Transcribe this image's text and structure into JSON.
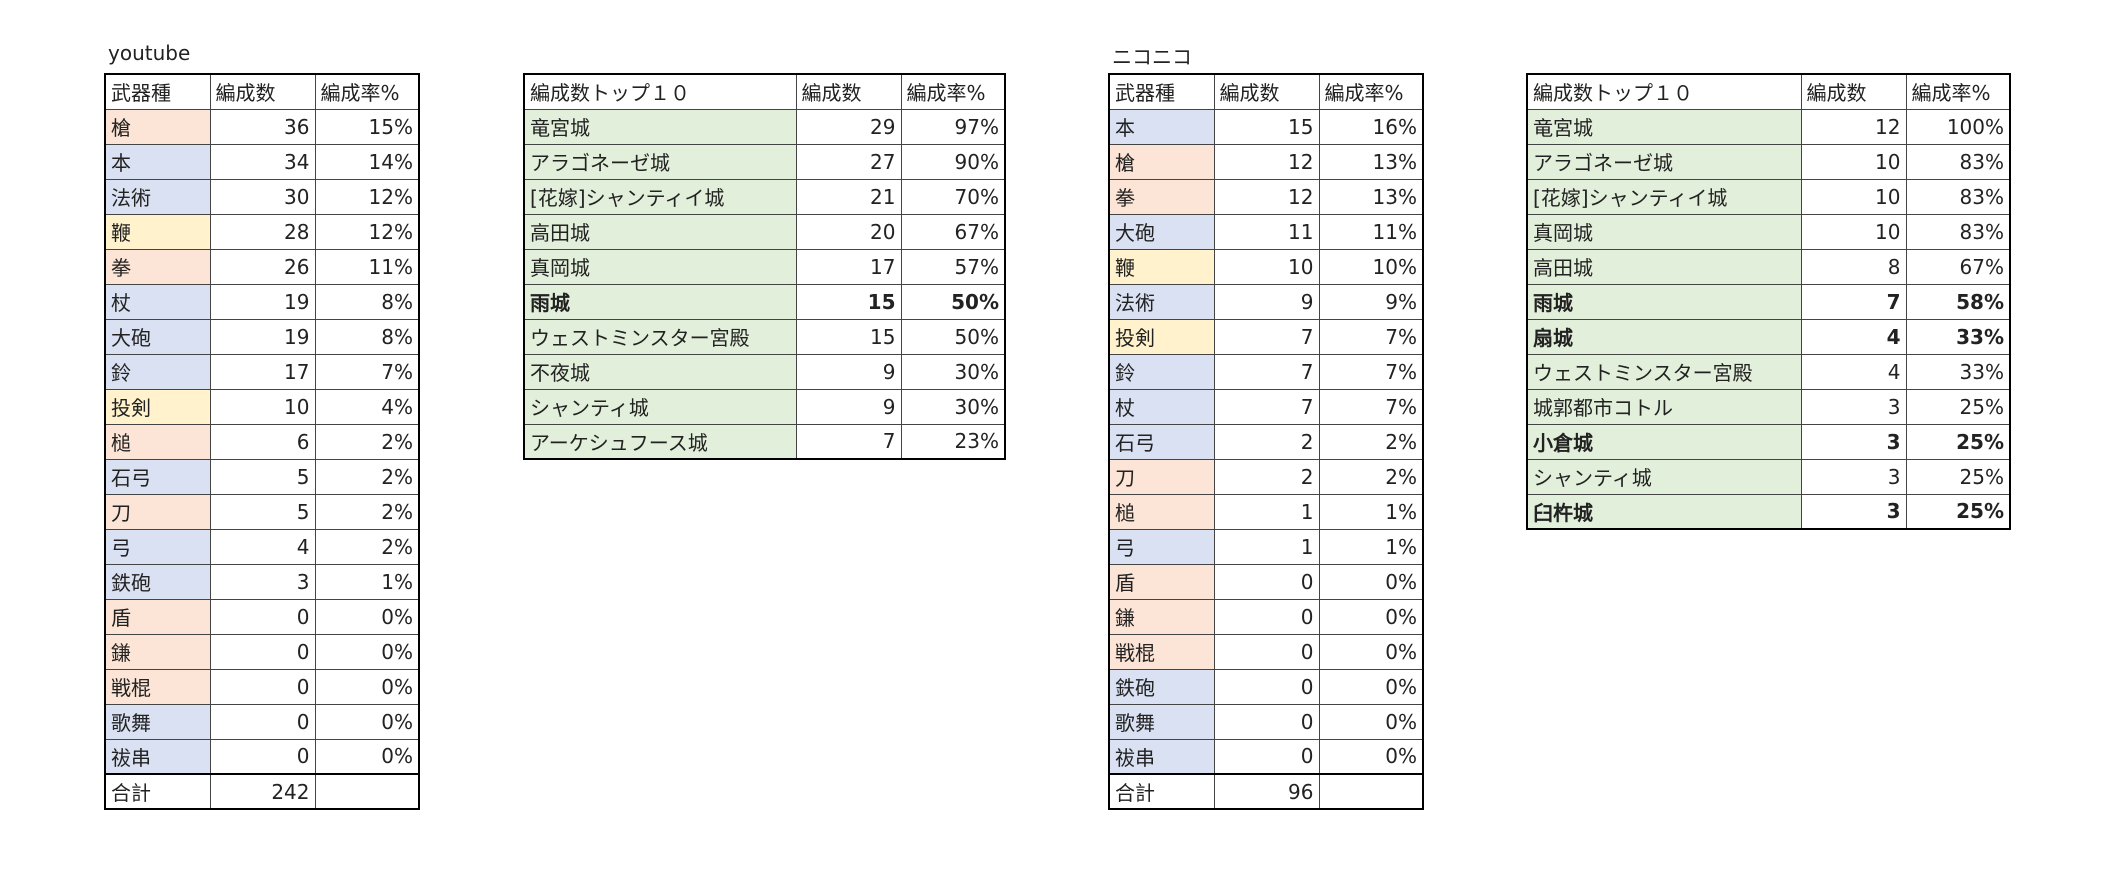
{
  "tables": [
    {
      "label": "youtube",
      "header": [
        "武器種",
        "編成数",
        "編成率%"
      ],
      "rows": [
        {
          "name": "槍",
          "count": 36,
          "rate": "15%",
          "color": "#fce4d6"
        },
        {
          "name": "本",
          "count": 34,
          "rate": "14%",
          "color": "#d9e1f2"
        },
        {
          "name": "法術",
          "count": 30,
          "rate": "12%",
          "color": "#d9e1f2"
        },
        {
          "name": "鞭",
          "count": 28,
          "rate": "12%",
          "color": "#fff2cc"
        },
        {
          "name": "拳",
          "count": 26,
          "rate": "11%",
          "color": "#fce4d6"
        },
        {
          "name": "杖",
          "count": 19,
          "rate": "8%",
          "color": "#d9e1f2"
        },
        {
          "name": "大砲",
          "count": 19,
          "rate": "8%",
          "color": "#d9e1f2"
        },
        {
          "name": "鈴",
          "count": 17,
          "rate": "7%",
          "color": "#d9e1f2"
        },
        {
          "name": "投剣",
          "count": 10,
          "rate": "4%",
          "color": "#fff2cc"
        },
        {
          "name": "槌",
          "count": 6,
          "rate": "2%",
          "color": "#fce4d6"
        },
        {
          "name": "石弓",
          "count": 5,
          "rate": "2%",
          "color": "#d9e1f2"
        },
        {
          "name": "刀",
          "count": 5,
          "rate": "2%",
          "color": "#fce4d6"
        },
        {
          "name": "弓",
          "count": 4,
          "rate": "2%",
          "color": "#d9e1f2"
        },
        {
          "name": "鉄砲",
          "count": 3,
          "rate": "1%",
          "color": "#d9e1f2"
        },
        {
          "name": "盾",
          "count": 0,
          "rate": "0%",
          "color": "#fce4d6"
        },
        {
          "name": "鎌",
          "count": 0,
          "rate": "0%",
          "color": "#fce4d6"
        },
        {
          "name": "戦棍",
          "count": 0,
          "rate": "0%",
          "color": "#fce4d6"
        },
        {
          "name": "歌舞",
          "count": 0,
          "rate": "0%",
          "color": "#d9e1f2"
        },
        {
          "name": "祓串",
          "count": 0,
          "rate": "0%",
          "color": "#d9e1f2"
        }
      ],
      "total": {
        "name": "合計",
        "count": 242
      }
    },
    {
      "header": [
        "編成数トップ１０",
        "編成数",
        "編成率%"
      ],
      "rows": [
        {
          "name": "竜宮城",
          "count": 29,
          "rate": "97%",
          "color": "#e2efda"
        },
        {
          "name": "アラゴネーゼ城",
          "count": 27,
          "rate": "90%",
          "color": "#e2efda"
        },
        {
          "name": "[花嫁]シャンティイ城",
          "count": 21,
          "rate": "70%",
          "color": "#e2efda"
        },
        {
          "name": "高田城",
          "count": 20,
          "rate": "67%",
          "color": "#e2efda"
        },
        {
          "name": "真岡城",
          "count": 17,
          "rate": "57%",
          "color": "#e2efda"
        },
        {
          "name": "雨城",
          "count": 15,
          "rate": "50%",
          "color": "#e2efda",
          "bold": true
        },
        {
          "name": "ウェストミンスター宮殿",
          "count": 15,
          "rate": "50%",
          "color": "#e2efda"
        },
        {
          "name": "不夜城",
          "count": 9,
          "rate": "30%",
          "color": "#e2efda"
        },
        {
          "name": "シャンティ城",
          "count": 9,
          "rate": "30%",
          "color": "#e2efda"
        },
        {
          "name": "アーケシュフース城",
          "count": 7,
          "rate": "23%",
          "color": "#e2efda"
        }
      ]
    },
    {
      "label": "ニコニコ",
      "header": [
        "武器種",
        "編成数",
        "編成率%"
      ],
      "rows": [
        {
          "name": "本",
          "count": 15,
          "rate": "16%",
          "color": "#d9e1f2"
        },
        {
          "name": "槍",
          "count": 12,
          "rate": "13%",
          "color": "#fce4d6"
        },
        {
          "name": "拳",
          "count": 12,
          "rate": "13%",
          "color": "#fce4d6"
        },
        {
          "name": "大砲",
          "count": 11,
          "rate": "11%",
          "color": "#d9e1f2"
        },
        {
          "name": "鞭",
          "count": 10,
          "rate": "10%",
          "color": "#fff2cc"
        },
        {
          "name": "法術",
          "count": 9,
          "rate": "9%",
          "color": "#d9e1f2"
        },
        {
          "name": "投剣",
          "count": 7,
          "rate": "7%",
          "color": "#fff2cc"
        },
        {
          "name": "鈴",
          "count": 7,
          "rate": "7%",
          "color": "#d9e1f2"
        },
        {
          "name": "杖",
          "count": 7,
          "rate": "7%",
          "color": "#d9e1f2"
        },
        {
          "name": "石弓",
          "count": 2,
          "rate": "2%",
          "color": "#d9e1f2"
        },
        {
          "name": "刀",
          "count": 2,
          "rate": "2%",
          "color": "#fce4d6"
        },
        {
          "name": "槌",
          "count": 1,
          "rate": "1%",
          "color": "#fce4d6"
        },
        {
          "name": "弓",
          "count": 1,
          "rate": "1%",
          "color": "#d9e1f2"
        },
        {
          "name": "盾",
          "count": 0,
          "rate": "0%",
          "color": "#fce4d6"
        },
        {
          "name": "鎌",
          "count": 0,
          "rate": "0%",
          "color": "#fce4d6"
        },
        {
          "name": "戦棍",
          "count": 0,
          "rate": "0%",
          "color": "#fce4d6"
        },
        {
          "name": "鉄砲",
          "count": 0,
          "rate": "0%",
          "color": "#d9e1f2"
        },
        {
          "name": "歌舞",
          "count": 0,
          "rate": "0%",
          "color": "#d9e1f2"
        },
        {
          "name": "祓串",
          "count": 0,
          "rate": "0%",
          "color": "#d9e1f2"
        }
      ],
      "total": {
        "name": "合計",
        "count": 96
      }
    },
    {
      "header": [
        "編成数トップ１０",
        "編成数",
        "編成率%"
      ],
      "rows": [
        {
          "name": "竜宮城",
          "count": 12,
          "rate": "100%",
          "color": "#e2efda"
        },
        {
          "name": "アラゴネーゼ城",
          "count": 10,
          "rate": "83%",
          "color": "#e2efda"
        },
        {
          "name": "[花嫁]シャンティイ城",
          "count": 10,
          "rate": "83%",
          "color": "#e2efda"
        },
        {
          "name": "真岡城",
          "count": 10,
          "rate": "83%",
          "color": "#e2efda"
        },
        {
          "name": "高田城",
          "count": 8,
          "rate": "67%",
          "color": "#e2efda"
        },
        {
          "name": "雨城",
          "count": 7,
          "rate": "58%",
          "color": "#e2efda",
          "bold": true
        },
        {
          "name": "扇城",
          "count": 4,
          "rate": "33%",
          "color": "#e2efda",
          "bold": true
        },
        {
          "name": "ウェストミンスター宮殿",
          "count": 4,
          "rate": "33%",
          "color": "#e2efda"
        },
        {
          "name": "城郭都市コトル",
          "count": 3,
          "rate": "25%",
          "color": "#e2efda"
        },
        {
          "name": "小倉城",
          "count": 3,
          "rate": "25%",
          "color": "#e2efda",
          "bold": true
        },
        {
          "name": "シャンティ城",
          "count": 3,
          "rate": "25%",
          "color": "#e2efda"
        },
        {
          "name": "臼杵城",
          "count": 3,
          "rate": "25%",
          "color": "#e2efda",
          "bold": true
        }
      ]
    }
  ]
}
